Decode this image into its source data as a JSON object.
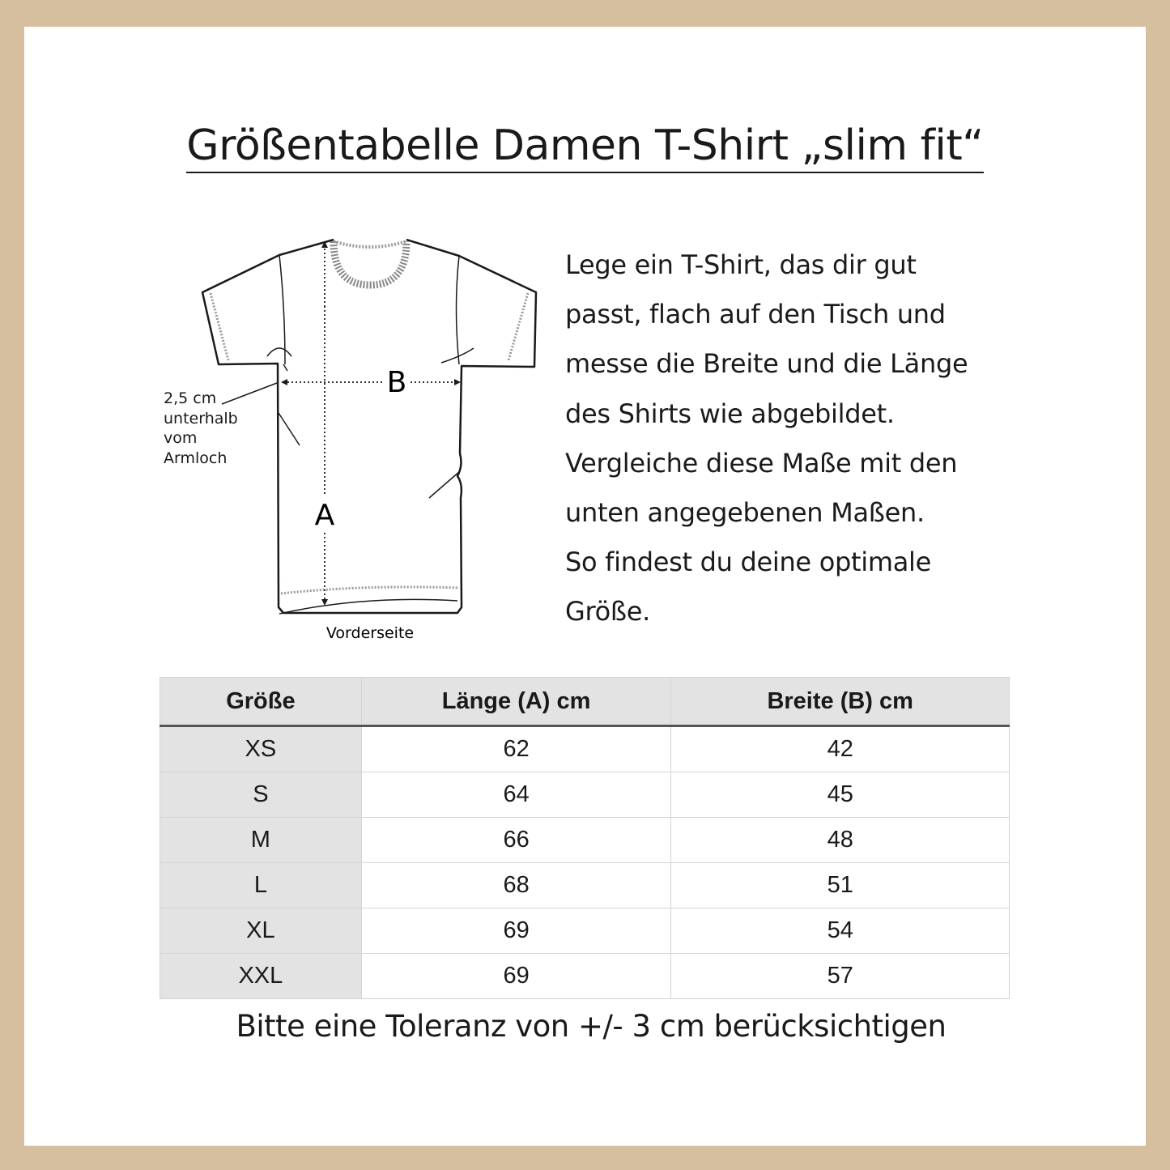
{
  "colors": {
    "frame": "#d6bf9e",
    "table_header_bg": "#e3e3e3"
  },
  "title": "Größentabelle Damen T-Shirt „slim fit“",
  "diagram": {
    "label_a": "A",
    "label_b": "B",
    "armpit_note": [
      "2,5 cm",
      "unterhalb",
      "vom",
      "Armloch"
    ],
    "caption": "Vorderseite"
  },
  "description": [
    "Lege ein T-Shirt, das dir gut",
    "passt, flach auf den Tisch und",
    "messe die Breite und die Länge",
    "des Shirts wie abgebildet.",
    "Vergleiche diese Maße mit den",
    "unten angegebenen Maßen.",
    "So findest du deine optimale",
    "Größe."
  ],
  "table": {
    "headers": [
      "Größe",
      "Länge (A) cm",
      "Breite (B) cm"
    ],
    "rows": [
      [
        "XS",
        "62",
        "42"
      ],
      [
        "S",
        "64",
        "45"
      ],
      [
        "M",
        "66",
        "48"
      ],
      [
        "L",
        "68",
        "51"
      ],
      [
        "XL",
        "69",
        "54"
      ],
      [
        "XXL",
        "69",
        "57"
      ]
    ]
  },
  "note": "Bitte eine Toleranz von +/- 3 cm berücksichtigen"
}
